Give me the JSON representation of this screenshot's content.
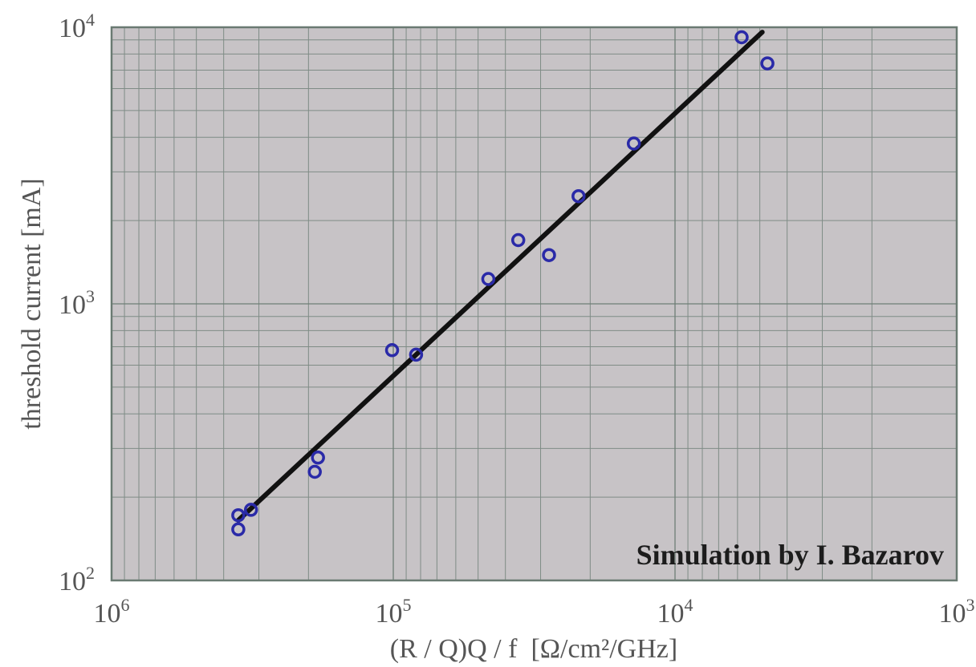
{
  "chart_data": {
    "type": "scatter",
    "xlabel": "(R / Q)Q / f  [Ω/cm²/GHz]",
    "ylabel": "threshold current [mA]",
    "annotation": "Simulation by I. Bazarov",
    "x_scale": "log",
    "y_scale": "log",
    "x_reversed": true,
    "xlim": [
      1000000,
      1000
    ],
    "ylim": [
      100,
      10000
    ],
    "grid": true,
    "x_ticks": [
      {
        "value": 1000000,
        "base": "10",
        "exp": "6"
      },
      {
        "value": 100000,
        "base": "10",
        "exp": "5"
      },
      {
        "value": 10000,
        "base": "10",
        "exp": "4"
      },
      {
        "value": 1000,
        "base": "10",
        "exp": "3"
      }
    ],
    "y_ticks": [
      {
        "value": 100,
        "base": "10",
        "exp": "2"
      },
      {
        "value": 1000,
        "base": "10",
        "exp": "3"
      },
      {
        "value": 10000,
        "base": "10",
        "exp": "4"
      }
    ],
    "series": [
      {
        "type": "scatter",
        "color": "#2a2aa8",
        "points": [
          {
            "x": 355000,
            "y": 172
          },
          {
            "x": 355000,
            "y": 153
          },
          {
            "x": 320000,
            "y": 180
          },
          {
            "x": 190000,
            "y": 247
          },
          {
            "x": 185000,
            "y": 278
          },
          {
            "x": 101000,
            "y": 680
          },
          {
            "x": 83000,
            "y": 655
          },
          {
            "x": 46000,
            "y": 1230
          },
          {
            "x": 36000,
            "y": 1700
          },
          {
            "x": 28000,
            "y": 1500
          },
          {
            "x": 22000,
            "y": 2450
          },
          {
            "x": 14000,
            "y": 3800
          },
          {
            "x": 5800,
            "y": 9200
          },
          {
            "x": 4700,
            "y": 7400
          }
        ]
      },
      {
        "type": "line",
        "color": "#111111",
        "points": [
          {
            "x": 355000,
            "y": 165
          },
          {
            "x": 4900,
            "y": 9600
          }
        ]
      }
    ]
  }
}
